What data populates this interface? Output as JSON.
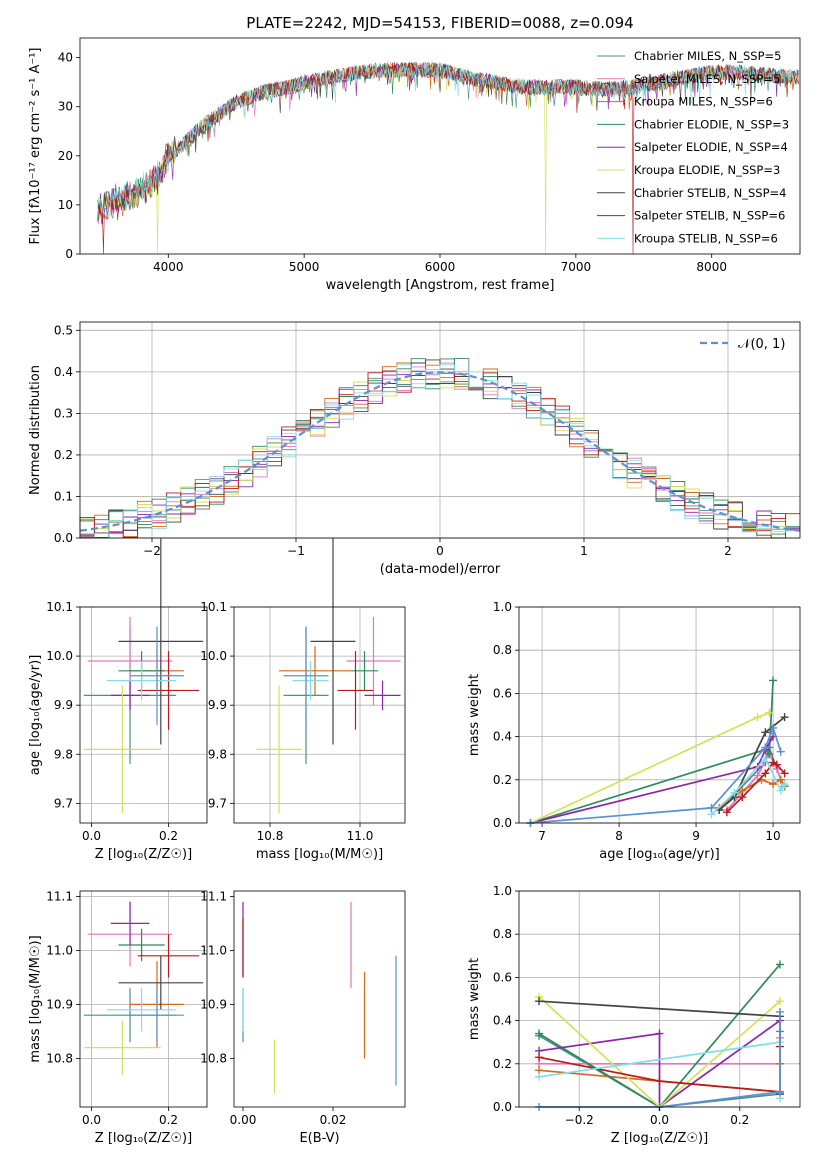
{
  "figure": {
    "title": "PLATE=2242, MJD=54153, FIBERID=0088, z=0.094"
  },
  "chart_data": [
    {
      "id": "spectrum",
      "type": "line",
      "xlabel": "wavelength [Angstrom, rest frame]",
      "ylabel": "Flux [fλ10⁻¹⁷ erg cm⁻² s⁻¹ A⁻¹]",
      "xlim": [
        3350,
        8650
      ],
      "ylim": [
        0,
        44
      ],
      "xticks": [
        4000,
        5000,
        6000,
        7000,
        8000
      ],
      "yticks": [
        0,
        10,
        20,
        30,
        40
      ],
      "grid": false,
      "legend_position": "top-right",
      "continuum": {
        "x": [
          3480,
          3600,
          3700,
          3800,
          3900,
          3950,
          4000,
          4100,
          4200,
          4300,
          4400,
          4500,
          4600,
          4700,
          4800,
          4900,
          5000,
          5200,
          5400,
          5600,
          5800,
          6000,
          6200,
          6400,
          6600,
          6800,
          7000,
          7200,
          7400,
          7600,
          7800,
          8000,
          8200,
          8400,
          8600
        ],
        "y": [
          9,
          11,
          12,
          13,
          15,
          17,
          20,
          22,
          25,
          27,
          29,
          31,
          32,
          33,
          33.5,
          34,
          35,
          36,
          37,
          37.5,
          37.5,
          37.5,
          36,
          35,
          34,
          34,
          34,
          33.5,
          34,
          35,
          36,
          37,
          37,
          36.5,
          36
        ]
      },
      "series": [
        {
          "name": "Chabrier MILES, N_SSP=5",
          "color": "#4c8f8a"
        },
        {
          "name": "Salpeter MILES, N_SSP=5",
          "color": "#e377c2"
        },
        {
          "name": "Kroupa MILES, N_SSP=6",
          "color": "#d2691e"
        },
        {
          "name": "Chabrier ELODIE, N_SSP=3",
          "color": "#2e8b57"
        },
        {
          "name": "Salpeter ELODIE, N_SSP=4",
          "color": "#8e24aa"
        },
        {
          "name": "Kroupa ELODIE, N_SSP=3",
          "color": "#d4e157"
        },
        {
          "name": "Chabrier STELIB, N_SSP=4",
          "color": "#444444"
        },
        {
          "name": "Salpeter STELIB, N_SSP=6",
          "color": "#b71c1c"
        },
        {
          "name": "Kroupa STELIB, N_SSP=6",
          "color": "#80deea"
        }
      ],
      "drops": [
        {
          "x": 3520,
          "series": 7
        },
        {
          "x": 3920,
          "series": 5
        },
        {
          "x": 6780,
          "series": 5
        },
        {
          "x": 7420,
          "series": 7
        }
      ]
    },
    {
      "id": "residuals",
      "type": "line",
      "xlabel": "(data-model)/error",
      "ylabel": "Normed distribution",
      "xlim": [
        -2.5,
        2.5
      ],
      "ylim": [
        0,
        0.52
      ],
      "xticks": [
        -2,
        -1,
        0,
        1,
        2
      ],
      "yticks": [
        0.0,
        0.1,
        0.2,
        0.3,
        0.4,
        0.5
      ],
      "grid": true,
      "legend": "𝒩(0, 1)",
      "legend_position": "top-right",
      "reference_color": "#5b8fd6"
    },
    {
      "id": "age-vs-Z",
      "type": "scatter",
      "xlabel": "Z [log₁₀(Z/Z☉)]",
      "ylabel": "age  [log₁₀(age/yr)]",
      "xlim": [
        -0.03,
        0.3
      ],
      "ylim": [
        9.66,
        10.1
      ],
      "xticks": [
        0.0,
        0.2
      ],
      "yticks": [
        9.7,
        9.8,
        9.9,
        10.0,
        10.1
      ],
      "grid": true,
      "points": [
        {
          "x": 0.1,
          "y": 9.92,
          "xerr": 0.12,
          "yerr": 0.14,
          "color": "#4c8f8a"
        },
        {
          "x": 0.1,
          "y": 9.99,
          "xerr": 0.11,
          "yerr": 0.09,
          "color": "#e377c2"
        },
        {
          "x": 0.17,
          "y": 9.97,
          "xerr": 0.07,
          "yerr": 0.05,
          "color": "#d2691e"
        },
        {
          "x": 0.13,
          "y": 9.97,
          "xerr": 0.06,
          "yerr": 0.04,
          "color": "#2e8b57"
        },
        {
          "x": 0.1,
          "y": 9.92,
          "xerr": 0.05,
          "yerr": 0.03,
          "color": "#8e24aa"
        },
        {
          "x": 0.08,
          "y": 9.81,
          "xerr": 0.1,
          "yerr": 0.13,
          "color": "#d4e157"
        },
        {
          "x": 0.18,
          "y": 10.03,
          "xerr": 0.11,
          "yerr": 0.21,
          "color": "#444444"
        },
        {
          "x": 0.2,
          "y": 9.93,
          "xerr": 0.08,
          "yerr": 0.08,
          "color": "#b71c1c"
        },
        {
          "x": 0.13,
          "y": 9.95,
          "xerr": 0.09,
          "yerr": 0.04,
          "color": "#80deea"
        },
        {
          "x": 0.17,
          "y": 9.96,
          "xerr": 0.07,
          "yerr": 0.1,
          "color": "#5b8fd6"
        }
      ]
    },
    {
      "id": "age-vs-mass",
      "type": "scatter",
      "xlabel": "mass [log₁₀(M/M☉)]",
      "ylabel": "",
      "xlim": [
        10.72,
        11.1
      ],
      "ylim": [
        9.66,
        10.1
      ],
      "xticks": [
        10.8,
        11.0
      ],
      "yticks": [
        9.7,
        9.8,
        9.9,
        10.0,
        10.1
      ],
      "grid": true,
      "points": [
        {
          "x": 10.88,
          "y": 9.92,
          "xerr": 0.05,
          "yerr": 0.14,
          "color": "#4c8f8a"
        },
        {
          "x": 11.03,
          "y": 9.99,
          "xerr": 0.06,
          "yerr": 0.09,
          "color": "#e377c2"
        },
        {
          "x": 10.9,
          "y": 9.97,
          "xerr": 0.08,
          "yerr": 0.05,
          "color": "#d2691e"
        },
        {
          "x": 11.01,
          "y": 9.97,
          "xerr": 0.03,
          "yerr": 0.04,
          "color": "#2e8b57"
        },
        {
          "x": 11.05,
          "y": 9.92,
          "xerr": 0.04,
          "yerr": 0.03,
          "color": "#8e24aa"
        },
        {
          "x": 10.82,
          "y": 9.81,
          "xerr": 0.05,
          "yerr": 0.13,
          "color": "#d4e157"
        },
        {
          "x": 10.94,
          "y": 10.03,
          "xerr": 0.05,
          "yerr": 0.21,
          "color": "#444444"
        },
        {
          "x": 10.99,
          "y": 9.93,
          "xerr": 0.04,
          "yerr": 0.08,
          "color": "#b71c1c"
        },
        {
          "x": 10.89,
          "y": 9.95,
          "xerr": 0.04,
          "yerr": 0.04,
          "color": "#80deea"
        },
        {
          "x": 10.88,
          "y": 9.96,
          "xerr": 0.05,
          "yerr": 0.1,
          "color": "#5b8fd6"
        }
      ]
    },
    {
      "id": "weight-vs-age",
      "type": "line",
      "xlabel": "age  [log₁₀(age/yr)]",
      "ylabel": "mass weight",
      "xlim": [
        6.7,
        10.35
      ],
      "ylim": [
        0,
        1.0
      ],
      "xticks": [
        7,
        8,
        9,
        10
      ],
      "yticks": [
        0.0,
        0.2,
        0.4,
        0.6,
        0.8,
        1.0
      ],
      "grid": true,
      "series": [
        {
          "color": "#4c8f8a",
          "x": [
            9.3,
            9.9,
            9.95,
            10.1,
            10.15
          ],
          "y": [
            0.06,
            0.28,
            0.35,
            0.2,
            0.17
          ]
        },
        {
          "color": "#e377c2",
          "x": [
            9.4,
            9.8,
            9.95,
            10.05,
            10.1
          ],
          "y": [
            0.06,
            0.22,
            0.32,
            0.25,
            0.2
          ]
        },
        {
          "color": "#d2691e",
          "x": [
            9.3,
            9.6,
            9.85,
            10.0,
            10.1,
            10.15
          ],
          "y": [
            0.07,
            0.15,
            0.2,
            0.18,
            0.2,
            0.17
          ]
        },
        {
          "color": "#2e8b57",
          "x": [
            6.85,
            9.9,
            9.95,
            10.0
          ],
          "y": [
            0.0,
            0.34,
            0.32,
            0.66
          ]
        },
        {
          "color": "#8e24aa",
          "x": [
            6.85,
            9.8,
            9.9,
            10.0
          ],
          "y": [
            0.0,
            0.26,
            0.34,
            0.4
          ]
        },
        {
          "color": "#d4e157",
          "x": [
            6.85,
            9.8,
            9.95
          ],
          "y": [
            0.0,
            0.49,
            0.51
          ]
        },
        {
          "color": "#444444",
          "x": [
            9.3,
            9.5,
            9.9,
            10.15
          ],
          "y": [
            0.06,
            0.12,
            0.42,
            0.49
          ]
        },
        {
          "color": "#b71c1c",
          "x": [
            9.4,
            9.6,
            9.9,
            10.0,
            10.05,
            10.15
          ],
          "y": [
            0.05,
            0.12,
            0.23,
            0.28,
            0.27,
            0.23
          ]
        },
        {
          "color": "#80deea",
          "x": [
            9.2,
            9.5,
            9.9,
            10.1,
            10.15
          ],
          "y": [
            0.04,
            0.14,
            0.3,
            0.15,
            0.18
          ]
        },
        {
          "color": "#5b8fd6",
          "x": [
            6.85,
            9.2,
            9.9,
            10.0,
            10.1
          ],
          "y": [
            0.0,
            0.07,
            0.35,
            0.44,
            0.33
          ]
        }
      ]
    },
    {
      "id": "mass-vs-Z",
      "type": "scatter",
      "xlabel": "Z [log₁₀(Z/Z☉)]",
      "ylabel": "mass [log₁₀(M/M☉)]",
      "xlim": [
        -0.03,
        0.3
      ],
      "ylim": [
        10.71,
        11.11
      ],
      "xticks": [
        0.0,
        0.2
      ],
      "yticks": [
        10.8,
        10.9,
        11.0,
        11.1
      ],
      "grid": true,
      "points": [
        {
          "x": 0.1,
          "y": 10.88,
          "xerr": 0.12,
          "yerr": 0.05,
          "color": "#4c8f8a"
        },
        {
          "x": 0.1,
          "y": 11.03,
          "xerr": 0.11,
          "yerr": 0.06,
          "color": "#e377c2"
        },
        {
          "x": 0.17,
          "y": 10.9,
          "xerr": 0.07,
          "yerr": 0.08,
          "color": "#d2691e"
        },
        {
          "x": 0.13,
          "y": 11.01,
          "xerr": 0.06,
          "yerr": 0.03,
          "color": "#2e8b57"
        },
        {
          "x": 0.1,
          "y": 11.05,
          "xerr": 0.05,
          "yerr": 0.04,
          "color": "#8e24aa"
        },
        {
          "x": 0.08,
          "y": 10.82,
          "xerr": 0.1,
          "yerr": 0.05,
          "color": "#d4e157"
        },
        {
          "x": 0.18,
          "y": 10.94,
          "xerr": 0.11,
          "yerr": 0.05,
          "color": "#444444"
        },
        {
          "x": 0.2,
          "y": 10.99,
          "xerr": 0.08,
          "yerr": 0.04,
          "color": "#b71c1c"
        },
        {
          "x": 0.13,
          "y": 10.89,
          "xerr": 0.09,
          "yerr": 0.04,
          "color": "#80deea"
        },
        {
          "x": 0.17,
          "y": 10.88,
          "xerr": 0.07,
          "yerr": 0.05,
          "color": "#5b8fd6"
        }
      ]
    },
    {
      "id": "mass-vs-EBV",
      "type": "scatter",
      "xlabel": "E(B-V)",
      "ylabel": "",
      "xlim": [
        -0.002,
        0.036
      ],
      "ylim": [
        10.71,
        11.11
      ],
      "xticks": [
        0.0,
        0.02
      ],
      "yticks": [
        10.8,
        10.9,
        11.0,
        11.1
      ],
      "grid": false,
      "points": [
        {
          "x": 0.0,
          "y": 10.88,
          "xerr": 0,
          "yerr": 0.05,
          "color": "#4c8f8a"
        },
        {
          "x": 0.024,
          "y": 11.01,
          "xerr": 0,
          "yerr": 0.08,
          "color": "#e377c2"
        },
        {
          "x": 0.027,
          "y": 10.88,
          "xerr": 0,
          "yerr": 0.08,
          "color": "#d2691e"
        },
        {
          "x": 0.0,
          "y": 11.02,
          "xerr": 0,
          "yerr": 0.07,
          "color": "#8e24aa"
        },
        {
          "x": 0.007,
          "y": 10.785,
          "xerr": 0,
          "yerr": 0.05,
          "color": "#d4e157"
        },
        {
          "x": 0.0,
          "y": 11.005,
          "xerr": 0,
          "yerr": 0.055,
          "color": "#b71c1c"
        },
        {
          "x": 0.0,
          "y": 10.89,
          "xerr": 0,
          "yerr": 0.04,
          "color": "#80deea"
        },
        {
          "x": 0.034,
          "y": 10.87,
          "xerr": 0,
          "yerr": 0.12,
          "color": "#5b8fd6"
        }
      ]
    },
    {
      "id": "weight-vs-Z",
      "type": "line",
      "xlabel": "Z [log₁₀(Z/Z☉)]",
      "ylabel": "mass weight",
      "xlim": [
        -0.35,
        0.35
      ],
      "ylim": [
        0,
        1.0
      ],
      "xticks": [
        -0.2,
        0.0,
        0.2
      ],
      "yticks": [
        0.0,
        0.2,
        0.4,
        0.6,
        0.8,
        1.0
      ],
      "grid": true,
      "series": [
        {
          "color": "#4c8f8a",
          "x": [
            -0.3,
            0.0,
            0.3,
            0.3
          ],
          "y": [
            0.33,
            0.0,
            0.06,
            0.35
          ]
        },
        {
          "color": "#e377c2",
          "x": [
            -0.3,
            0.3,
            0.3
          ],
          "y": [
            0.2,
            0.2,
            0.32
          ]
        },
        {
          "color": "#d2691e",
          "x": [
            -0.3,
            0.3,
            0.3
          ],
          "y": [
            0.17,
            0.07,
            0.2
          ]
        },
        {
          "color": "#2e8b57",
          "x": [
            -0.3,
            0.0,
            0.3
          ],
          "y": [
            0.34,
            0.0,
            0.66
          ]
        },
        {
          "color": "#8e24aa",
          "x": [
            -0.3,
            0.0,
            0.0,
            0.3
          ],
          "y": [
            0.26,
            0.34,
            0.0,
            0.4
          ]
        },
        {
          "color": "#d4e157",
          "x": [
            -0.3,
            0.0,
            0.3
          ],
          "y": [
            0.51,
            0.0,
            0.49
          ]
        },
        {
          "color": "#444444",
          "x": [
            -0.3,
            0.3,
            0.3
          ],
          "y": [
            0.49,
            0.42,
            0.06
          ]
        },
        {
          "color": "#b71c1c",
          "x": [
            -0.3,
            0.0,
            0.3,
            0.3
          ],
          "y": [
            0.23,
            0.12,
            0.07,
            0.28
          ]
        },
        {
          "color": "#80deea",
          "x": [
            -0.3,
            0.3,
            0.3
          ],
          "y": [
            0.14,
            0.3,
            0.04
          ]
        },
        {
          "color": "#5b8fd6",
          "x": [
            -0.3,
            0.0,
            0.3,
            0.3
          ],
          "y": [
            0.0,
            0.0,
            0.07,
            0.44
          ]
        }
      ]
    }
  ]
}
